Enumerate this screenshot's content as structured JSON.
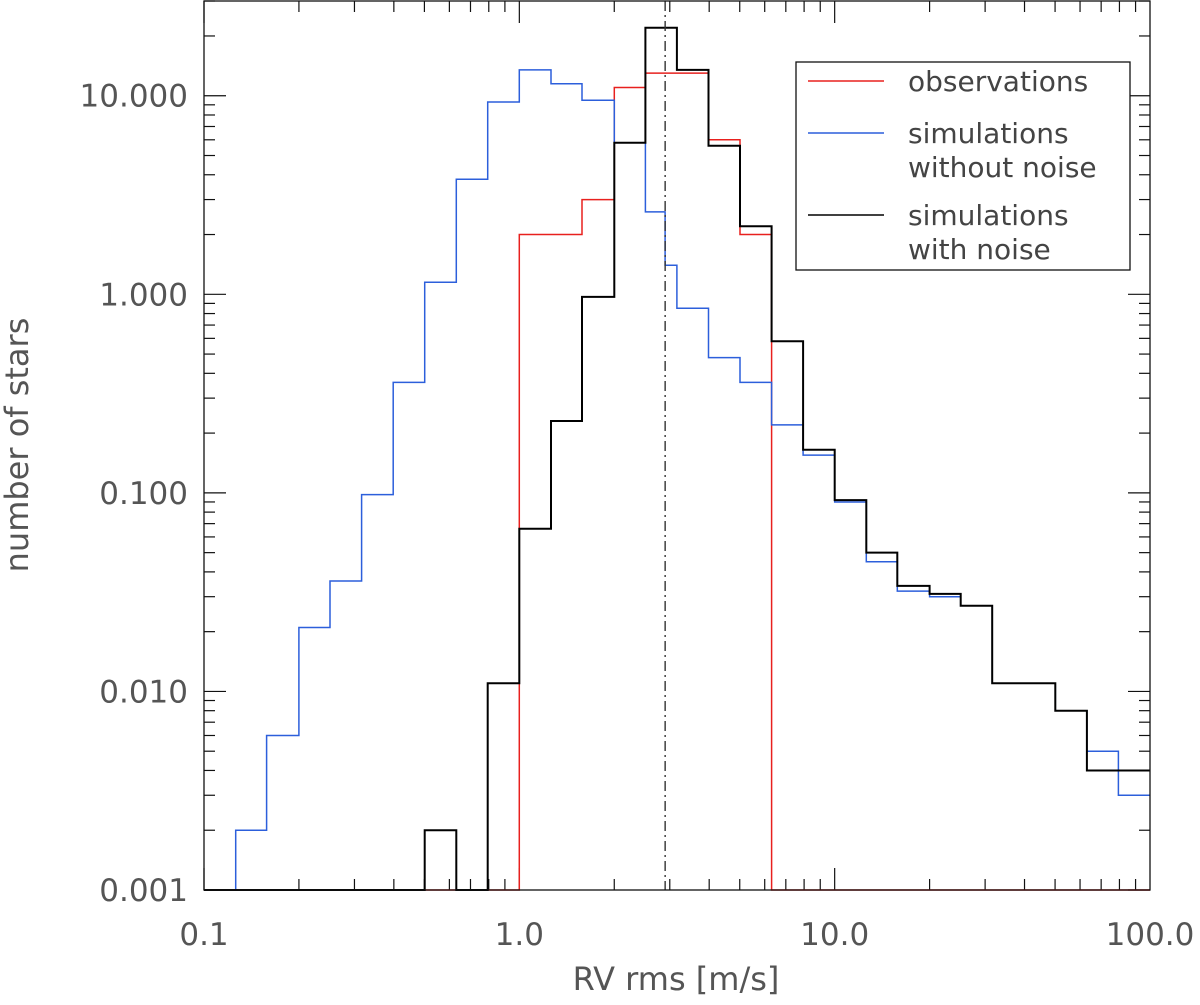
{
  "chart_data": {
    "type": "line",
    "xlabel": "RV rms [m/s]",
    "ylabel": "number of stars",
    "x_scale": "log",
    "y_scale": "log",
    "xlim": [
      0.1,
      100.0
    ],
    "ylim": [
      0.001,
      30.0
    ],
    "x_tick_labels": [
      "0.1",
      "1.0",
      "10.0",
      "100.0"
    ],
    "y_tick_labels": [
      "0.001",
      "0.010",
      "0.100",
      "1.000",
      "10.000"
    ],
    "x_ticks": [
      0.1,
      1.0,
      10.0,
      100.0
    ],
    "y_ticks": [
      0.001,
      0.01,
      0.1,
      1.0,
      10.0
    ],
    "legend_position": "top-right",
    "reference_line": {
      "x": 2.9,
      "style": "dash-dot",
      "color": "#333333"
    },
    "bin_edges": [
      0.1,
      0.126,
      0.158,
      0.2,
      0.251,
      0.316,
      0.398,
      0.501,
      0.631,
      0.794,
      1.0,
      1.26,
      1.58,
      2.0,
      2.51,
      3.16,
      3.98,
      5.01,
      6.31,
      7.94,
      10.0,
      12.6,
      15.8,
      20.0,
      25.1,
      31.6,
      39.8,
      50.1,
      63.1,
      79.4,
      100.0
    ],
    "series": [
      {
        "name": "observations",
        "color": "#e8201e",
        "steps": [
          [
            0.126,
            0.001
          ],
          [
            1.0,
            2.0
          ],
          [
            1.58,
            3.0
          ],
          [
            2.0,
            11.0
          ],
          [
            2.51,
            13.0
          ],
          [
            3.16,
            13.0
          ],
          [
            3.98,
            6.0
          ],
          [
            5.01,
            2.0
          ],
          [
            6.31,
            0.001
          ],
          [
            100.0,
            0.001
          ]
        ]
      },
      {
        "name": "simulations without noise",
        "color": "#2c5fdb",
        "steps": [
          [
            0.126,
            0.002
          ],
          [
            0.158,
            0.006
          ],
          [
            0.2,
            0.021
          ],
          [
            0.251,
            0.036
          ],
          [
            0.316,
            0.098
          ],
          [
            0.398,
            0.36
          ],
          [
            0.501,
            1.15
          ],
          [
            0.631,
            3.8
          ],
          [
            0.794,
            9.3
          ],
          [
            1.0,
            13.5
          ],
          [
            1.26,
            11.5
          ],
          [
            1.58,
            9.5
          ],
          [
            2.0,
            5.8
          ],
          [
            2.51,
            2.6
          ],
          [
            2.9,
            1.4
          ],
          [
            3.16,
            0.85
          ],
          [
            3.98,
            0.48
          ],
          [
            5.01,
            0.36
          ],
          [
            6.31,
            0.22
          ],
          [
            7.94,
            0.155
          ],
          [
            10.0,
            0.09
          ],
          [
            12.6,
            0.045
          ],
          [
            15.8,
            0.032
          ],
          [
            20.0,
            0.03
          ],
          [
            25.1,
            0.027
          ],
          [
            31.6,
            0.011
          ],
          [
            50.1,
            0.008
          ],
          [
            63.1,
            0.005
          ],
          [
            79.4,
            0.003
          ],
          [
            100.0,
            0.003
          ]
        ]
      },
      {
        "name": "simulations with noise",
        "color": "#000000",
        "steps": [
          [
            0.126,
            0.001
          ],
          [
            0.501,
            0.002
          ],
          [
            0.631,
            0.001
          ],
          [
            0.794,
            0.011
          ],
          [
            1.0,
            0.066
          ],
          [
            1.26,
            0.23
          ],
          [
            1.58,
            0.97
          ],
          [
            2.0,
            5.8
          ],
          [
            2.51,
            22.0
          ],
          [
            3.16,
            13.5
          ],
          [
            3.98,
            5.6
          ],
          [
            5.01,
            2.2
          ],
          [
            6.31,
            0.58
          ],
          [
            7.94,
            0.165
          ],
          [
            10.0,
            0.092
          ],
          [
            12.6,
            0.05
          ],
          [
            15.8,
            0.034
          ],
          [
            20.0,
            0.031
          ],
          [
            25.1,
            0.027
          ],
          [
            31.6,
            0.011
          ],
          [
            50.1,
            0.008
          ],
          [
            63.1,
            0.004
          ],
          [
            79.4,
            0.004
          ],
          [
            100.0,
            0.004
          ]
        ]
      }
    ],
    "legend_entries": [
      {
        "color": "#e8201e",
        "lines": [
          "observations"
        ]
      },
      {
        "color": "#2c5fdb",
        "lines": [
          "simulations",
          "without noise"
        ]
      },
      {
        "color": "#000000",
        "lines": [
          "simulations",
          "with noise"
        ]
      }
    ]
  }
}
